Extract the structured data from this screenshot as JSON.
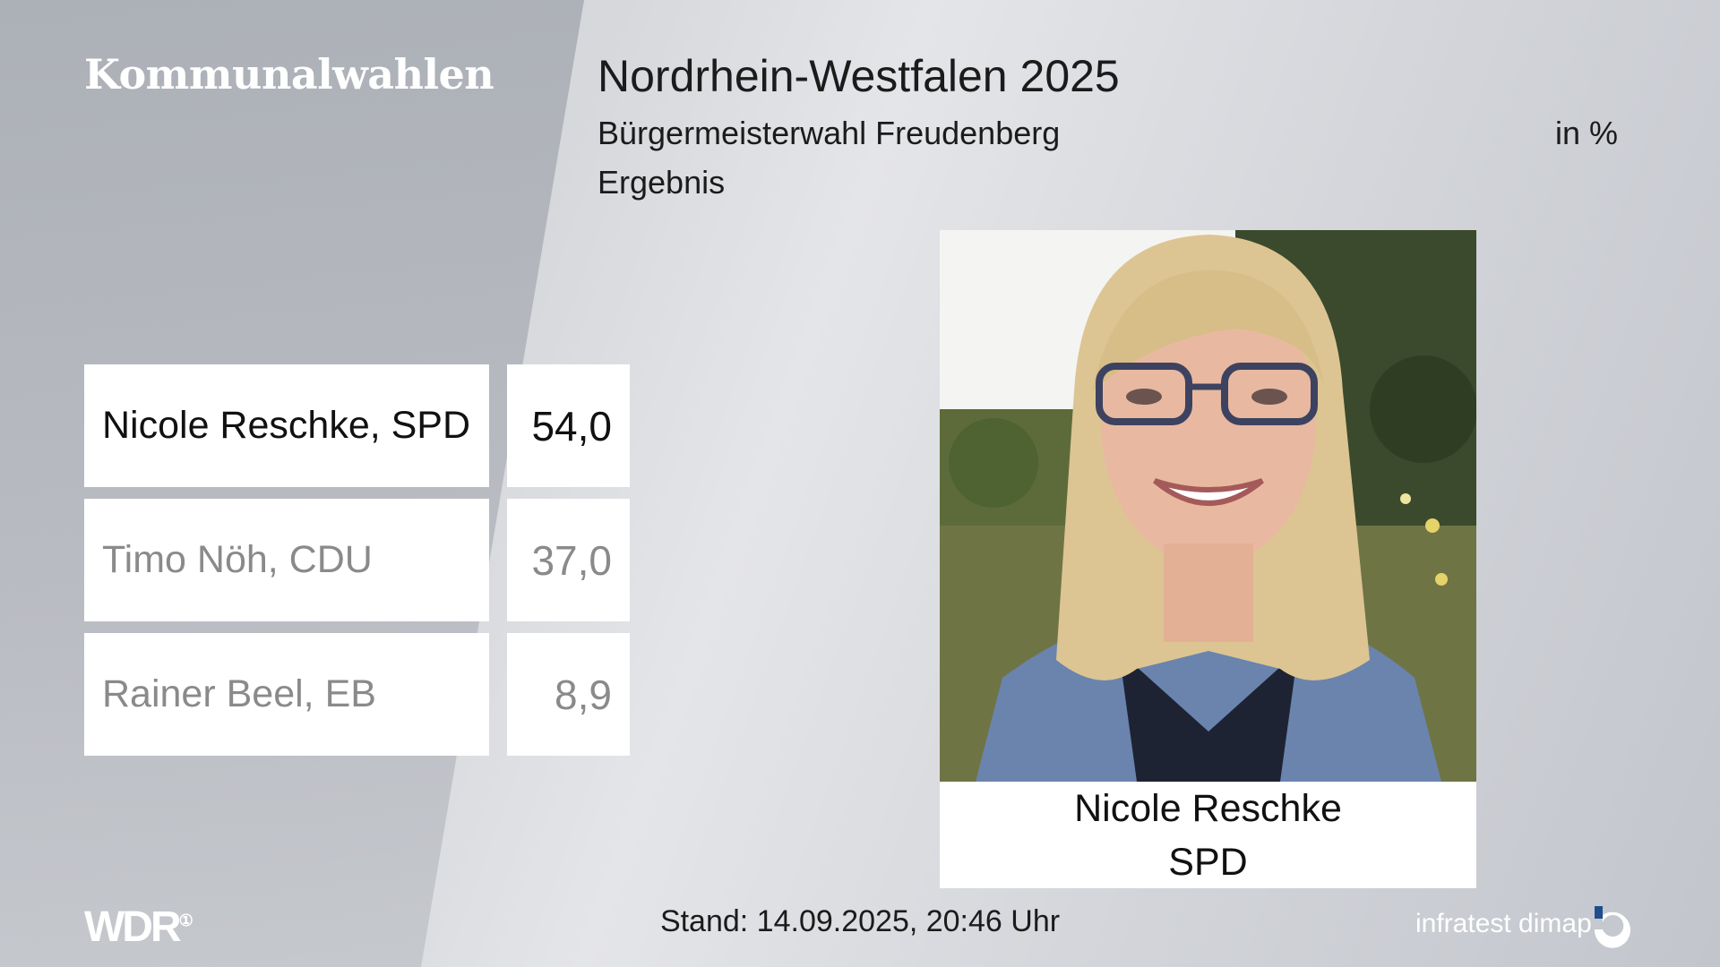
{
  "header": {
    "brand": "Kommunalwahlen",
    "title": "Nordrhein-Westfalen 2025",
    "subtitle": "Bürgermeisterwahl Freudenberg",
    "unit": "in %",
    "result_label": "Ergebnis"
  },
  "results": [
    {
      "name": "Nicole Reschke, SPD",
      "value": "54,0",
      "winner": true
    },
    {
      "name": "Timo Nöh, CDU",
      "value": "37,0",
      "winner": false
    },
    {
      "name": "Rainer Beel, EB",
      "value": "8,9",
      "winner": false
    }
  ],
  "winner_card": {
    "name": "Nicole Reschke",
    "party": "SPD"
  },
  "footer": {
    "logo": "WDR",
    "timestamp": "Stand: 14.09.2025, 20:46 Uhr",
    "source": "infratest dimap"
  },
  "colors": {
    "winner_text": "#111111",
    "other_text": "#8a8a8a",
    "dimap_blue": "#1f4e8c"
  }
}
